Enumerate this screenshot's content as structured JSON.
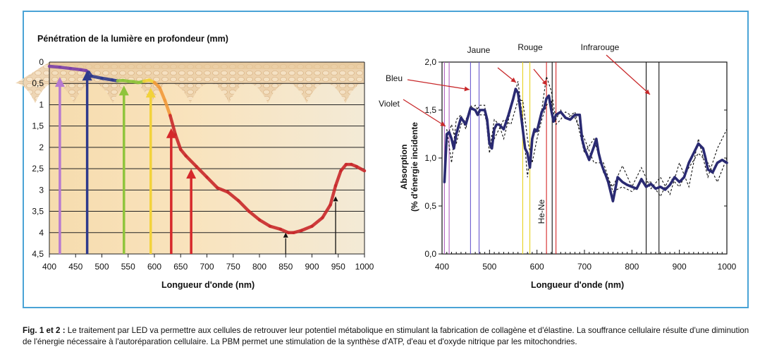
{
  "left_chart": {
    "title": "Pénétration de la lumière en profondeur (mm)",
    "xlabel": "Longueur d'onde (nm)",
    "x_ticks": [
      "400",
      "450",
      "500",
      "550",
      "600",
      "650",
      "700",
      "750",
      "800",
      "850",
      "900",
      "950",
      "1000"
    ],
    "y_ticks": [
      "0",
      "0,5",
      "1",
      "1,5",
      "2",
      "2,5",
      "3",
      "3,5",
      "4",
      "4,5"
    ]
  },
  "right_chart": {
    "ylabel_line1": "Absorption",
    "ylabel_line2": "(% d'énergie incidente",
    "xlabel": "Longueur d'onde (nm)",
    "x_ticks": [
      "400",
      "500",
      "600",
      "700",
      "800",
      "900",
      "1000"
    ],
    "y_ticks": [
      "2,0",
      "1,5",
      "1,0",
      "0,5",
      "0,0"
    ],
    "annotations": {
      "jaune": "Jaune",
      "rouge": "Rouge",
      "infrarouge": "Infrarouge",
      "bleu": "Bleu",
      "violet": "Violet",
      "hene": "He-Ne"
    }
  },
  "caption": {
    "label": "Fig. 1 et 2 :",
    "text": " Le traitement par LED va permettre aux cellules de retrouver leur potentiel métabolique en stimulant la fabrication de collagène et d'élastine. La souffrance cellulaire résulte d'une diminution de l'énergie nécessaire à l'autoréparation cellulaire. La PBM permet une stimulation de la synthèse d'ATP, d'eau et d'oxyde nitrique par les mitochondries."
  },
  "chart_data": [
    {
      "type": "line",
      "title": "Pénétration de la lumière en profondeur (mm)",
      "xlabel": "Longueur d'onde (nm)",
      "ylabel": "",
      "xlim": [
        400,
        1000
      ],
      "ylim": [
        4.5,
        0
      ],
      "y_inverted": true,
      "grid": true,
      "series": [
        {
          "x": [
            400,
            420,
            440,
            460,
            470,
            475,
            480,
            500,
            520,
            530,
            540,
            550,
            560,
            570,
            580,
            590,
            600,
            610,
            620,
            630,
            640,
            650,
            660,
            680,
            700,
            720,
            740,
            760,
            780,
            800,
            820,
            840,
            855,
            865,
            880,
            900,
            920,
            935,
            945,
            955,
            965,
            975,
            985,
            1000
          ],
          "y": [
            0.1,
            0.12,
            0.15,
            0.18,
            0.2,
            0.24,
            0.33,
            0.38,
            0.42,
            0.44,
            0.43,
            0.45,
            0.46,
            0.48,
            0.45,
            0.42,
            0.48,
            0.6,
            0.9,
            1.25,
            1.7,
            2.05,
            2.2,
            2.45,
            2.7,
            2.95,
            3.05,
            3.25,
            3.5,
            3.7,
            3.85,
            3.92,
            4.0,
            4.0,
            3.95,
            3.85,
            3.65,
            3.35,
            2.9,
            2.55,
            2.4,
            2.4,
            2.45,
            2.55
          ]
        }
      ],
      "arrows_nm": [
        420,
        472,
        542,
        593,
        632,
        670,
        850,
        945
      ],
      "colors": {
        "violet": "#b77ad0",
        "blue": "#2e3a8c",
        "green": "#8fc43c",
        "yellow": "#f2d23a",
        "red": "#d6282b",
        "black": "#111111"
      }
    },
    {
      "type": "line",
      "title": "",
      "xlabel": "Longueur d'onde (nm)",
      "ylabel": "Absorption (% d'énergie incidente",
      "xlim": [
        400,
        1000
      ],
      "ylim": [
        0,
        2
      ],
      "grid": false,
      "series": [
        {
          "style": "solid",
          "x": [
            405,
            410,
            415,
            420,
            425,
            430,
            440,
            450,
            460,
            470,
            475,
            480,
            490,
            495,
            500,
            505,
            510,
            515,
            520,
            530,
            540,
            550,
            555,
            560,
            565,
            570,
            575,
            580,
            585,
            590,
            595,
            600,
            610,
            615,
            620,
            625,
            630,
            635,
            640,
            650,
            660,
            670,
            680,
            690,
            695,
            700,
            710,
            720,
            725,
            730,
            735,
            740,
            745,
            750,
            760,
            770,
            780,
            790,
            800,
            810,
            820,
            830,
            840,
            850,
            860,
            870,
            880,
            890,
            900,
            910,
            920,
            930,
            940,
            950,
            955,
            960,
            970,
            980,
            990,
            1000
          ],
          "y": [
            0.75,
            1.25,
            1.27,
            1.2,
            1.1,
            1.25,
            1.42,
            1.35,
            1.52,
            1.5,
            1.45,
            1.5,
            1.5,
            1.4,
            1.15,
            1.1,
            1.3,
            1.35,
            1.35,
            1.3,
            1.45,
            1.62,
            1.72,
            1.68,
            1.5,
            1.3,
            1.1,
            1.05,
            0.9,
            1.2,
            1.3,
            1.28,
            1.48,
            1.52,
            1.62,
            1.65,
            1.5,
            1.38,
            1.45,
            1.48,
            1.42,
            1.4,
            1.45,
            1.45,
            1.2,
            1.1,
            0.98,
            1.12,
            1.2,
            1.05,
            0.95,
            0.88,
            0.82,
            0.75,
            0.55,
            0.8,
            0.75,
            0.72,
            0.7,
            0.68,
            0.78,
            0.7,
            0.73,
            0.68,
            0.7,
            0.67,
            0.72,
            0.8,
            0.75,
            0.8,
            0.95,
            1.05,
            1.15,
            1.1,
            1.0,
            0.88,
            0.85,
            0.95,
            0.98,
            0.95
          ]
        },
        {
          "style": "dashed",
          "x": [
            410,
            420,
            430,
            440,
            450,
            460,
            470,
            480,
            490,
            500,
            510,
            520,
            530,
            545,
            560,
            570,
            580,
            590,
            600,
            610,
            620,
            630,
            640,
            650,
            660,
            680,
            700,
            720,
            740,
            760,
            780,
            800,
            820,
            840,
            860,
            880,
            900,
            920,
            940,
            960,
            980,
            1000
          ],
          "y": [
            1.3,
            0.95,
            1.4,
            1.45,
            1.3,
            1.55,
            1.48,
            1.55,
            1.55,
            1.05,
            1.4,
            1.35,
            1.2,
            1.5,
            1.8,
            1.4,
            0.8,
            1.2,
            1.3,
            1.5,
            1.85,
            1.7,
            1.4,
            1.5,
            1.4,
            1.48,
            1.05,
            1.2,
            0.85,
            0.7,
            0.92,
            0.7,
            0.9,
            0.68,
            0.8,
            0.62,
            0.95,
            0.7,
            1.2,
            0.8,
            1.1,
            1.3
          ]
        },
        {
          "style": "dashed",
          "x": [
            410,
            420,
            430,
            440,
            450,
            460,
            470,
            480,
            490,
            500,
            510,
            520,
            530,
            545,
            560,
            570,
            580,
            590,
            600,
            610,
            620,
            630,
            640,
            650,
            660,
            680,
            700,
            720,
            740,
            760,
            780,
            800,
            820,
            840,
            860,
            880,
            900,
            920,
            940,
            960,
            980,
            1000
          ],
          "y": [
            1.2,
            1.35,
            1.15,
            1.35,
            1.4,
            1.5,
            1.55,
            1.45,
            1.45,
            1.25,
            1.2,
            1.3,
            1.4,
            1.35,
            1.6,
            1.6,
            1.2,
            0.95,
            1.2,
            1.4,
            1.55,
            1.6,
            1.35,
            1.4,
            1.48,
            1.42,
            1.2,
            0.95,
            0.95,
            0.65,
            0.7,
            0.65,
            0.75,
            0.75,
            0.6,
            0.8,
            0.7,
            0.9,
            1.05,
            0.95,
            0.75,
            1.0
          ]
        }
      ],
      "vlines_nm": [
        {
          "x": 405,
          "color": "#b060c0"
        },
        {
          "x": 415,
          "color": "#b060c0"
        },
        {
          "x": 460,
          "color": "#6a5acd"
        },
        {
          "x": 478,
          "color": "#6a5acd"
        },
        {
          "x": 570,
          "color": "#e8d21e"
        },
        {
          "x": 585,
          "color": "#e8d21e"
        },
        {
          "x": 620,
          "color": "#d62728"
        },
        {
          "x": 632,
          "color": "#111111"
        },
        {
          "x": 640,
          "color": "#d62728"
        },
        {
          "x": 830,
          "color": "#111111"
        },
        {
          "x": 857,
          "color": "#111111"
        }
      ]
    }
  ]
}
